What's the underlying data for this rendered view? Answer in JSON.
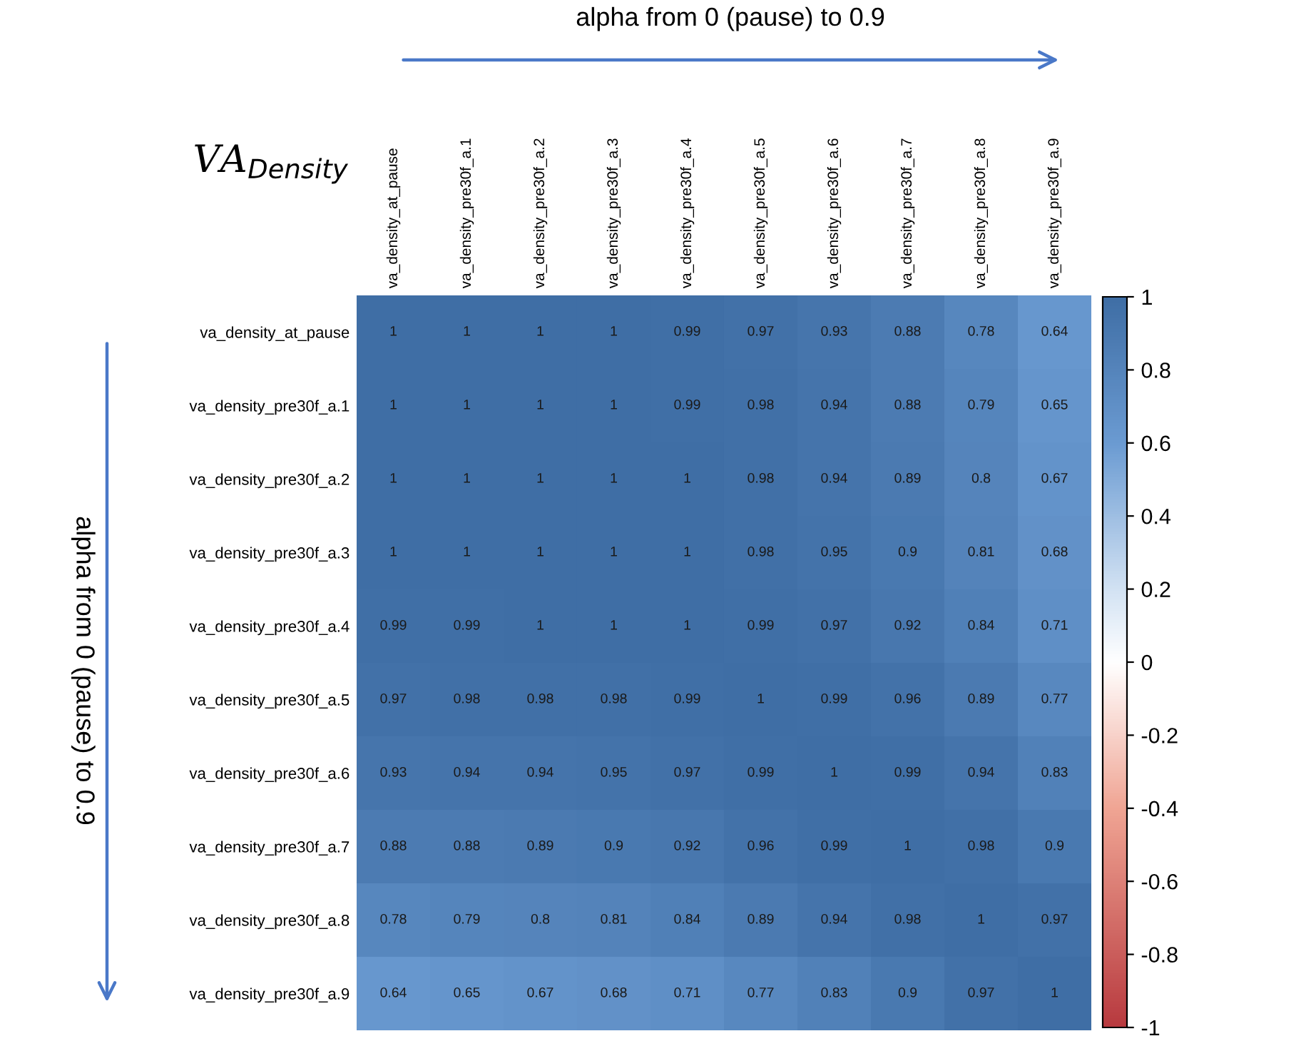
{
  "chart_data": {
    "type": "heatmap",
    "title": "VA$_{Density}$",
    "xlabel": "alpha from 0 (pause) to 0.9",
    "ylabel": "alpha from 0 (pause) to 0.9",
    "categories": [
      "va_density_at_pause",
      "va_density_pre30f_a.1",
      "va_density_pre30f_a.2",
      "va_density_pre30f_a.3",
      "va_density_pre30f_a.4",
      "va_density_pre30f_a.5",
      "va_density_pre30f_a.6",
      "va_density_pre30f_a.7",
      "va_density_pre30f_a.8",
      "va_density_pre30f_a.9"
    ],
    "y_categories": [
      "va_density_at_pause",
      "va_density_pre30f_a.1",
      "va_density_pre30f_a.2",
      "va_density_pre30f_a.3",
      "va_density_pre30f_a.4",
      "va_density_pre30f_a.5",
      "va_density_pre30f_a.6",
      "va_density_pre30f_a.7",
      "va_density_pre30f_a.8",
      "va_density_pre30f_a.9"
    ],
    "cells": [
      [
        1,
        1,
        1,
        1,
        0.99,
        0.97,
        0.93,
        0.88,
        0.78,
        0.64
      ],
      [
        1,
        1,
        1,
        1,
        0.99,
        0.98,
        0.94,
        0.88,
        0.79,
        0.65
      ],
      [
        1,
        1,
        1,
        1,
        1,
        0.98,
        0.94,
        0.89,
        0.8,
        0.67
      ],
      [
        1,
        1,
        1,
        1,
        1,
        0.98,
        0.95,
        0.9,
        0.81,
        0.68
      ],
      [
        0.99,
        0.99,
        1,
        1,
        1,
        0.99,
        0.97,
        0.92,
        0.84,
        0.71
      ],
      [
        0.97,
        0.98,
        0.98,
        0.98,
        0.99,
        1,
        0.99,
        0.96,
        0.89,
        0.77
      ],
      [
        0.93,
        0.94,
        0.94,
        0.95,
        0.97,
        0.99,
        1,
        0.99,
        0.94,
        0.83
      ],
      [
        0.88,
        0.88,
        0.89,
        0.9,
        0.92,
        0.96,
        0.99,
        1,
        0.98,
        0.9
      ],
      [
        0.78,
        0.79,
        0.8,
        0.81,
        0.84,
        0.89,
        0.94,
        0.98,
        1,
        0.97
      ],
      [
        0.64,
        0.65,
        0.67,
        0.68,
        0.71,
        0.77,
        0.83,
        0.9,
        0.97,
        1
      ]
    ],
    "clim": [
      -1,
      1
    ],
    "cticks": [
      -1,
      -0.8,
      -0.6,
      -0.4,
      -0.2,
      0,
      0.2,
      0.4,
      0.6,
      0.8,
      1
    ],
    "data_labels": true
  }
}
